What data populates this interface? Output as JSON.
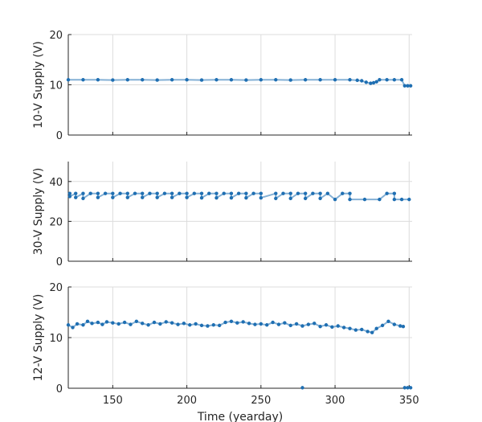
{
  "chart_data": [
    {
      "type": "scatter",
      "ylabel": "10-V Supply (V)",
      "xlabel": "",
      "xlim": [
        120,
        352
      ],
      "ylim": [
        0,
        20
      ],
      "yticks": [
        0,
        10,
        20
      ],
      "xticks": [
        150,
        200,
        250,
        300,
        350
      ],
      "show_xtick_labels": false,
      "grid": true,
      "series": [
        {
          "color": "#1f6fb2",
          "points": [
            [
              120,
              11.0
            ],
            [
              130,
              11.0
            ],
            [
              140,
              11.0
            ],
            [
              150,
              10.95
            ],
            [
              160,
              11.0
            ],
            [
              170,
              11.0
            ],
            [
              180,
              10.95
            ],
            [
              190,
              11.0
            ],
            [
              200,
              11.0
            ],
            [
              210,
              10.95
            ],
            [
              220,
              11.0
            ],
            [
              230,
              11.0
            ],
            [
              240,
              10.95
            ],
            [
              250,
              11.0
            ],
            [
              260,
              11.0
            ],
            [
              270,
              10.95
            ],
            [
              280,
              11.0
            ],
            [
              290,
              11.0
            ],
            [
              300,
              11.0
            ],
            [
              310,
              11.0
            ],
            [
              315,
              10.9
            ],
            [
              318,
              10.8
            ],
            [
              321,
              10.5
            ],
            [
              324,
              10.3
            ],
            [
              326,
              10.4
            ],
            [
              328,
              10.6
            ],
            [
              330,
              11.0
            ],
            [
              335,
              11.0
            ],
            [
              340,
              11.0
            ],
            [
              345,
              11.0
            ],
            [
              347,
              9.8
            ],
            [
              349,
              9.8
            ],
            [
              351,
              9.8
            ]
          ]
        }
      ]
    },
    {
      "type": "scatter",
      "ylabel": "30-V Supply (V)",
      "xlabel": "",
      "xlim": [
        120,
        352
      ],
      "ylim": [
        0,
        50
      ],
      "yticks": [
        0,
        20,
        40
      ],
      "xticks": [
        150,
        200,
        250,
        300,
        350
      ],
      "show_xtick_labels": false,
      "grid": true,
      "series": [
        {
          "color": "#1f6fb2",
          "points": [
            [
              121,
              34.0
            ],
            [
              125,
              34.0
            ],
            [
              130,
              34.0
            ],
            [
              135,
              34.0
            ],
            [
              140,
              34.0
            ],
            [
              145,
              34.0
            ],
            [
              150,
              34.0
            ],
            [
              155,
              34.0
            ],
            [
              160,
              34.0
            ],
            [
              165,
              34.0
            ],
            [
              170,
              34.0
            ],
            [
              175,
              34.0
            ],
            [
              180,
              34.0
            ],
            [
              185,
              34.0
            ],
            [
              190,
              34.0
            ],
            [
              195,
              34.0
            ],
            [
              200,
              34.0
            ],
            [
              205,
              34.0
            ],
            [
              210,
              34.0
            ],
            [
              215,
              34.0
            ],
            [
              220,
              34.0
            ],
            [
              225,
              34.0
            ],
            [
              230,
              34.0
            ],
            [
              235,
              34.0
            ],
            [
              240,
              34.0
            ],
            [
              245,
              34.0
            ],
            [
              250,
              34.0
            ],
            [
              260,
              34.0
            ],
            [
              265,
              34.0
            ],
            [
              270,
              34.0
            ],
            [
              275,
              34.0
            ],
            [
              280,
              34.0
            ],
            [
              285,
              34.0
            ],
            [
              290,
              34.0
            ],
            [
              295,
              34.0
            ],
            [
              305,
              34.0
            ],
            [
              310,
              34.0
            ],
            [
              335,
              34.0
            ],
            [
              340,
              34.0
            ],
            [
              121,
              32.5
            ],
            [
              125,
              32.0
            ],
            [
              130,
              31.5
            ],
            [
              140,
              32.0
            ],
            [
              150,
              32.0
            ],
            [
              160,
              32.0
            ],
            [
              170,
              32.0
            ],
            [
              180,
              32.0
            ],
            [
              190,
              32.0
            ],
            [
              200,
              32.0
            ],
            [
              210,
              31.8
            ],
            [
              220,
              31.8
            ],
            [
              230,
              31.8
            ],
            [
              240,
              31.8
            ],
            [
              250,
              31.8
            ],
            [
              260,
              31.5
            ],
            [
              270,
              31.5
            ],
            [
              280,
              31.5
            ],
            [
              290,
              31.5
            ],
            [
              300,
              31.0
            ],
            [
              310,
              31.0
            ],
            [
              320,
              31.0
            ],
            [
              330,
              31.0
            ],
            [
              340,
              31.0
            ],
            [
              345,
              31.0
            ],
            [
              350,
              31.0
            ]
          ]
        }
      ]
    },
    {
      "type": "scatter",
      "ylabel": "12-V Supply (V)",
      "xlabel": "Time (yearday)",
      "xlim": [
        120,
        352
      ],
      "ylim": [
        0,
        20
      ],
      "yticks": [
        0,
        10,
        20
      ],
      "xticks": [
        150,
        200,
        250,
        300,
        350
      ],
      "show_xtick_labels": true,
      "grid": true,
      "series": [
        {
          "color": "#1f6fb2",
          "points": [
            [
              120,
              12.5
            ],
            [
              123,
              12.0
            ],
            [
              126,
              12.7
            ],
            [
              130,
              12.5
            ],
            [
              133,
              13.2
            ],
            [
              136,
              12.8
            ],
            [
              140,
              13.0
            ],
            [
              143,
              12.6
            ],
            [
              146,
              13.1
            ],
            [
              150,
              12.9
            ],
            [
              154,
              12.7
            ],
            [
              158,
              13.0
            ],
            [
              162,
              12.6
            ],
            [
              166,
              13.2
            ],
            [
              170,
              12.8
            ],
            [
              174,
              12.5
            ],
            [
              178,
              13.0
            ],
            [
              182,
              12.7
            ],
            [
              186,
              13.1
            ],
            [
              190,
              12.9
            ],
            [
              194,
              12.6
            ],
            [
              198,
              12.8
            ],
            [
              202,
              12.5
            ],
            [
              206,
              12.7
            ],
            [
              210,
              12.4
            ],
            [
              214,
              12.3
            ],
            [
              218,
              12.5
            ],
            [
              222,
              12.4
            ],
            [
              226,
              13.0
            ],
            [
              230,
              13.2
            ],
            [
              234,
              12.9
            ],
            [
              238,
              13.1
            ],
            [
              242,
              12.8
            ],
            [
              246,
              12.6
            ],
            [
              250,
              12.7
            ],
            [
              254,
              12.5
            ],
            [
              258,
              13.0
            ],
            [
              262,
              12.6
            ],
            [
              266,
              12.9
            ],
            [
              270,
              12.4
            ],
            [
              274,
              12.7
            ],
            [
              278,
              12.3
            ],
            [
              282,
              12.6
            ],
            [
              286,
              12.8
            ],
            [
              290,
              12.2
            ],
            [
              294,
              12.5
            ],
            [
              298,
              12.1
            ],
            [
              302,
              12.3
            ],
            [
              306,
              12.0
            ],
            [
              310,
              11.8
            ],
            [
              314,
              11.5
            ],
            [
              318,
              11.6
            ],
            [
              322,
              11.2
            ],
            [
              325,
              11.0
            ],
            [
              328,
              11.8
            ],
            [
              332,
              12.4
            ],
            [
              336,
              13.2
            ],
            [
              340,
              12.6
            ],
            [
              344,
              12.3
            ],
            [
              346,
              12.2
            ],
            [
              278,
              0.1
            ],
            [
              347,
              0.1
            ],
            [
              349,
              0.1
            ],
            [
              351,
              0.1
            ]
          ]
        }
      ]
    }
  ]
}
